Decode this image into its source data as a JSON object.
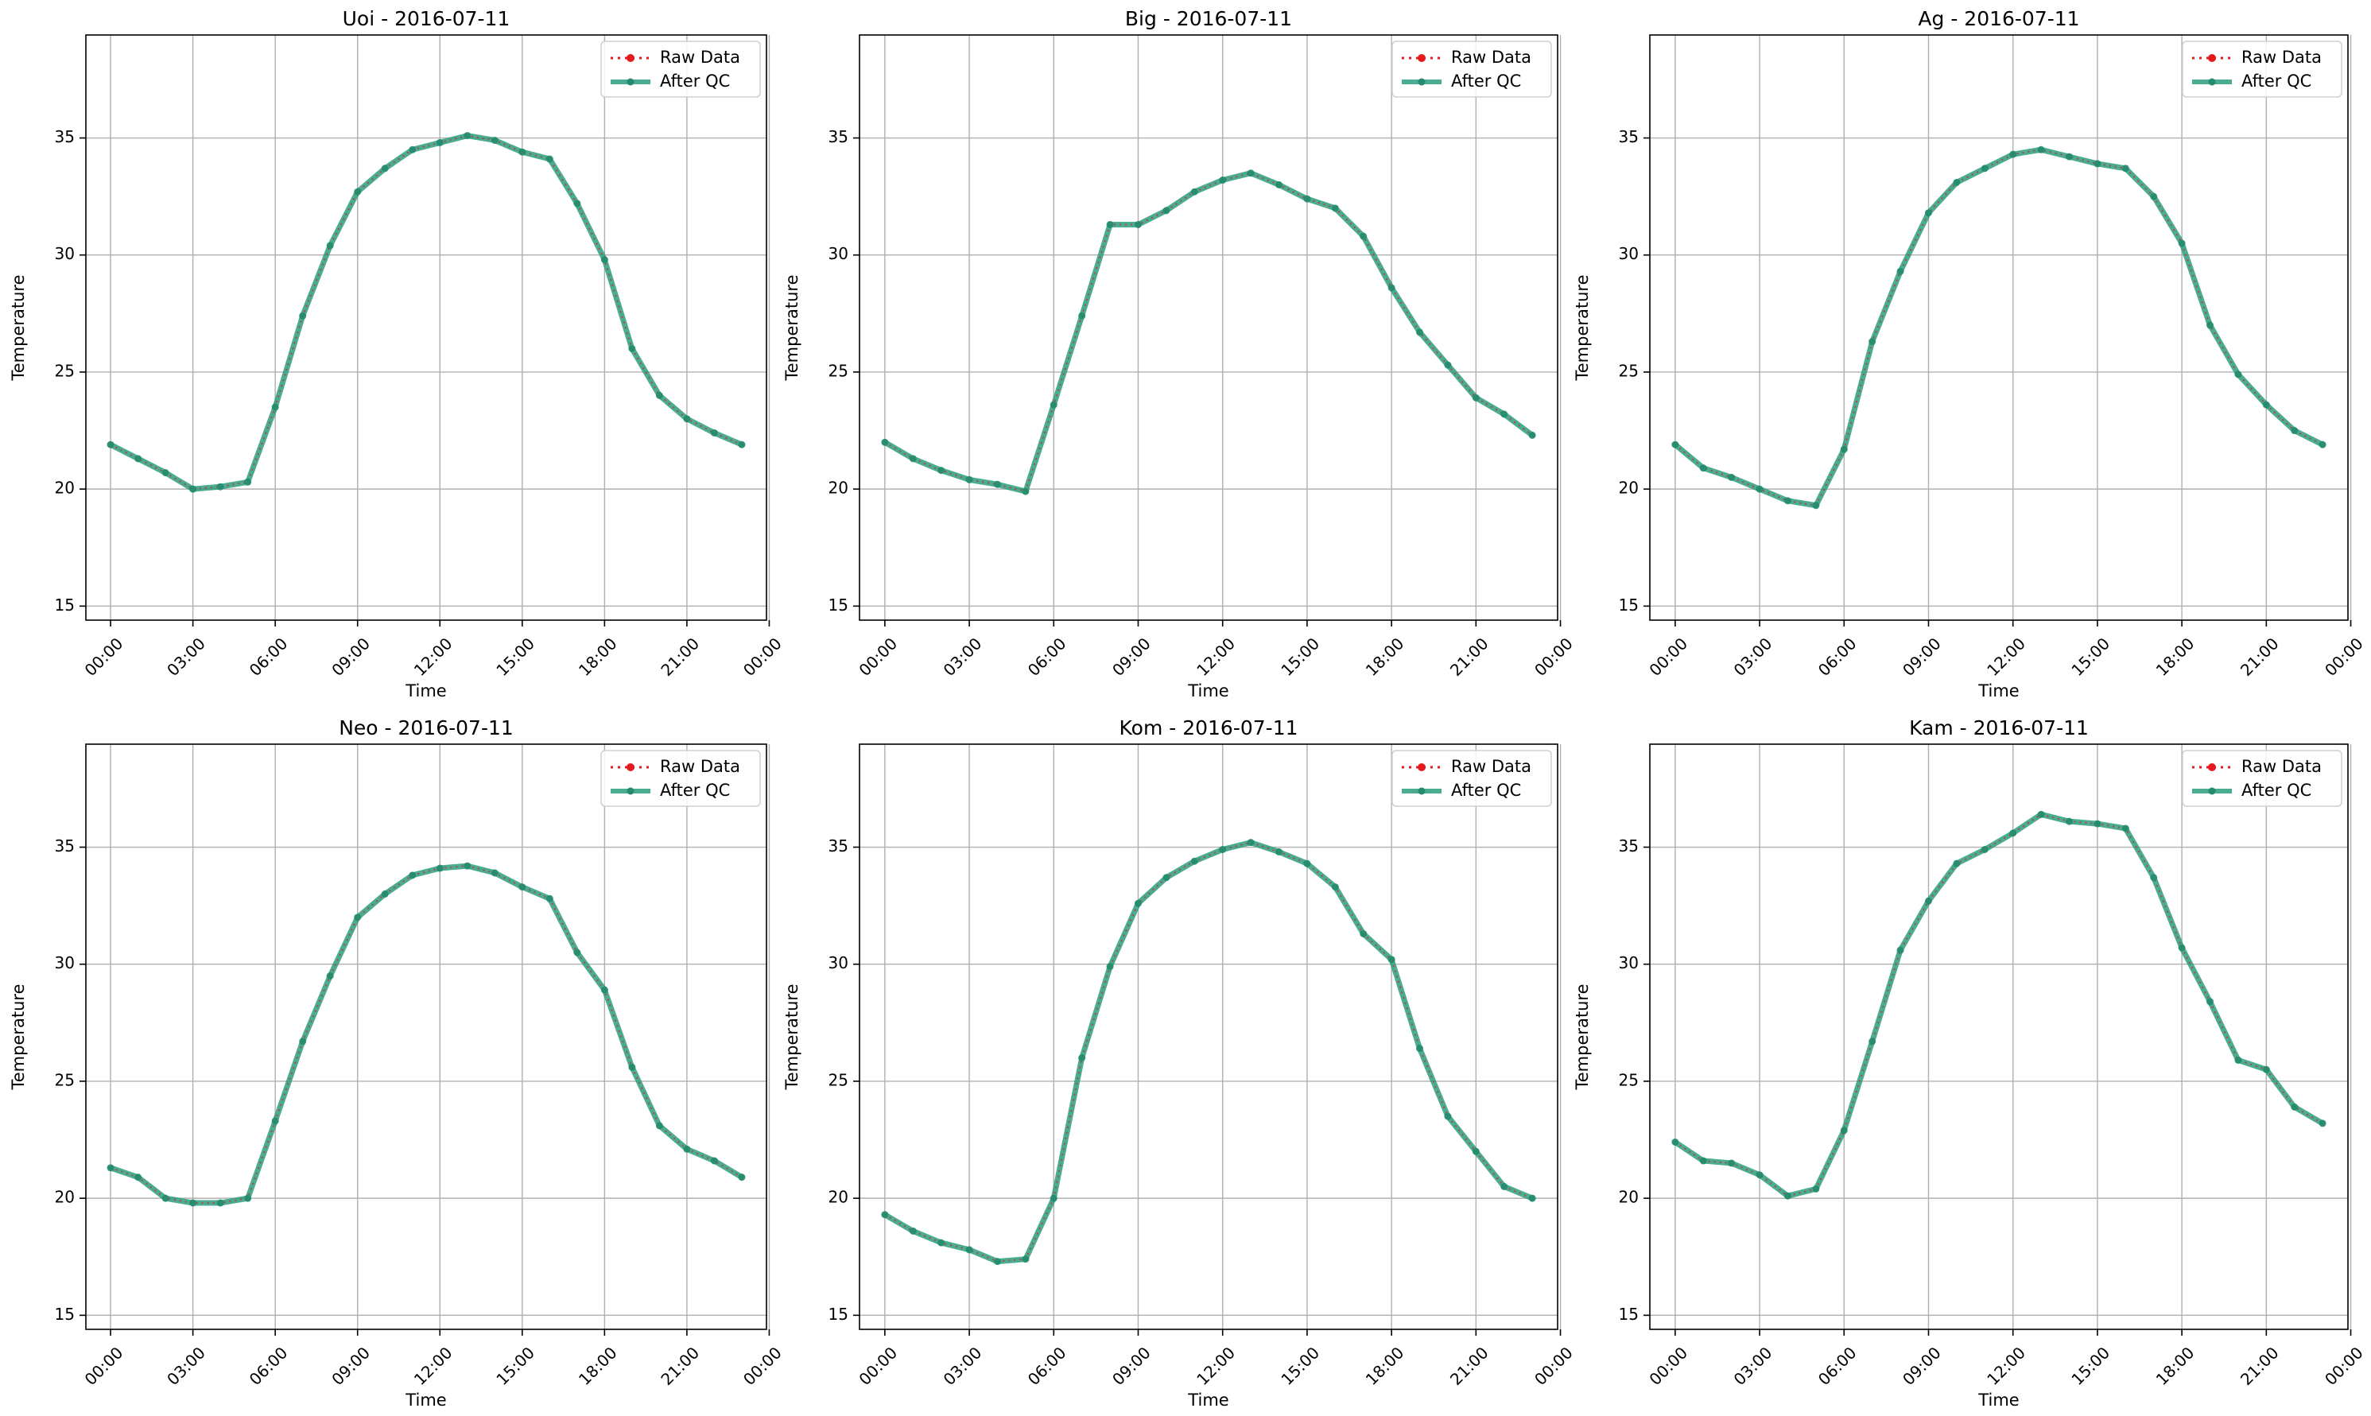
{
  "colors": {
    "raw": "#e41a1c",
    "qc": "#2a9d7e",
    "qc_marker": "#238b6e",
    "grid": "#b0b0b0"
  },
  "legend": {
    "raw_label": "Raw Data",
    "qc_label": "After QC",
    "placement": "upper right"
  },
  "chart_data": [
    {
      "type": "line",
      "title": "Uoi - 2016-07-11",
      "xlabel": "Time",
      "ylabel": "Temperature",
      "xlim": [
        -0.9,
        23.9
      ],
      "ylim": [
        14.4,
        39.4
      ],
      "grid": true,
      "x_ticks": [
        0,
        3,
        6,
        9,
        12,
        15,
        18,
        21,
        24
      ],
      "x_tick_labels": [
        "00:00",
        "03:00",
        "06:00",
        "09:00",
        "12:00",
        "15:00",
        "18:00",
        "21:00",
        "00:00"
      ],
      "y_ticks": [
        15,
        20,
        25,
        30,
        35
      ],
      "x": [
        0,
        1,
        2,
        3,
        4,
        5,
        6,
        7,
        8,
        9,
        10,
        11,
        12,
        13,
        14,
        15,
        16,
        17,
        18,
        19,
        20,
        21,
        22,
        23
      ],
      "series": [
        {
          "name": "Raw Data",
          "values": [
            21.9,
            21.3,
            20.7,
            20.0,
            20.1,
            20.3,
            23.5,
            27.4,
            30.4,
            32.7,
            33.7,
            34.5,
            34.8,
            35.1,
            34.9,
            34.4,
            34.1,
            32.2,
            29.8,
            26.0,
            24.0,
            23.0,
            22.4,
            21.9
          ]
        },
        {
          "name": "After QC",
          "values": [
            21.9,
            21.3,
            20.7,
            20.0,
            20.1,
            20.3,
            23.5,
            27.4,
            30.4,
            32.7,
            33.7,
            34.5,
            34.8,
            35.1,
            34.9,
            34.4,
            34.1,
            32.2,
            29.8,
            26.0,
            24.0,
            23.0,
            22.4,
            21.9
          ]
        }
      ]
    },
    {
      "type": "line",
      "title": "Big - 2016-07-11",
      "xlabel": "Time",
      "ylabel": "Temperature",
      "xlim": [
        -0.9,
        23.9
      ],
      "ylim": [
        14.4,
        39.4
      ],
      "grid": true,
      "x_ticks": [
        0,
        3,
        6,
        9,
        12,
        15,
        18,
        21,
        24
      ],
      "x_tick_labels": [
        "00:00",
        "03:00",
        "06:00",
        "09:00",
        "12:00",
        "15:00",
        "18:00",
        "21:00",
        "00:00"
      ],
      "y_ticks": [
        15,
        20,
        25,
        30,
        35
      ],
      "x": [
        0,
        1,
        2,
        3,
        4,
        5,
        6,
        7,
        8,
        9,
        10,
        11,
        12,
        13,
        14,
        15,
        16,
        17,
        18,
        19,
        20,
        21,
        22,
        23
      ],
      "series": [
        {
          "name": "Raw Data",
          "values": [
            22.0,
            21.3,
            20.8,
            20.4,
            20.2,
            19.9,
            23.6,
            27.4,
            31.3,
            31.3,
            31.9,
            32.7,
            33.2,
            33.5,
            33.0,
            32.4,
            32.0,
            30.8,
            28.6,
            26.7,
            25.3,
            23.9,
            23.2,
            22.3
          ]
        },
        {
          "name": "After QC",
          "values": [
            22.0,
            21.3,
            20.8,
            20.4,
            20.2,
            19.9,
            23.6,
            27.4,
            31.3,
            31.3,
            31.9,
            32.7,
            33.2,
            33.5,
            33.0,
            32.4,
            32.0,
            30.8,
            28.6,
            26.7,
            25.3,
            23.9,
            23.2,
            22.3
          ]
        }
      ]
    },
    {
      "type": "line",
      "title": "Ag - 2016-07-11",
      "xlabel": "Time",
      "ylabel": "Temperature",
      "xlim": [
        -0.9,
        23.9
      ],
      "ylim": [
        14.4,
        39.4
      ],
      "grid": true,
      "x_ticks": [
        0,
        3,
        6,
        9,
        12,
        15,
        18,
        21,
        24
      ],
      "x_tick_labels": [
        "00:00",
        "03:00",
        "06:00",
        "09:00",
        "12:00",
        "15:00",
        "18:00",
        "21:00",
        "00:00"
      ],
      "y_ticks": [
        15,
        20,
        25,
        30,
        35
      ],
      "x": [
        0,
        1,
        2,
        3,
        4,
        5,
        6,
        7,
        8,
        9,
        10,
        11,
        12,
        13,
        14,
        15,
        16,
        17,
        18,
        19,
        20,
        21,
        22,
        23
      ],
      "series": [
        {
          "name": "Raw Data",
          "values": [
            21.9,
            20.9,
            20.5,
            20.0,
            19.5,
            19.3,
            21.7,
            26.3,
            29.3,
            31.8,
            33.1,
            33.7,
            34.3,
            34.5,
            34.2,
            33.9,
            33.7,
            32.5,
            30.5,
            27.0,
            24.9,
            23.6,
            22.5,
            21.9
          ]
        },
        {
          "name": "After QC",
          "values": [
            21.9,
            20.9,
            20.5,
            20.0,
            19.5,
            19.3,
            21.7,
            26.3,
            29.3,
            31.8,
            33.1,
            33.7,
            34.3,
            34.5,
            34.2,
            33.9,
            33.7,
            32.5,
            30.5,
            27.0,
            24.9,
            23.6,
            22.5,
            21.9
          ]
        }
      ]
    },
    {
      "type": "line",
      "title": "Neo - 2016-07-11",
      "xlabel": "Time",
      "ylabel": "Temperature",
      "xlim": [
        -0.9,
        23.9
      ],
      "ylim": [
        14.4,
        39.4
      ],
      "grid": true,
      "x_ticks": [
        0,
        3,
        6,
        9,
        12,
        15,
        18,
        21,
        24
      ],
      "x_tick_labels": [
        "00:00",
        "03:00",
        "06:00",
        "09:00",
        "12:00",
        "15:00",
        "18:00",
        "21:00",
        "00:00"
      ],
      "y_ticks": [
        15,
        20,
        25,
        30,
        35
      ],
      "x": [
        0,
        1,
        2,
        3,
        4,
        5,
        6,
        7,
        8,
        9,
        10,
        11,
        12,
        13,
        14,
        15,
        16,
        17,
        18,
        19,
        20,
        21,
        22,
        23
      ],
      "series": [
        {
          "name": "Raw Data",
          "values": [
            21.3,
            20.9,
            20.0,
            19.8,
            19.8,
            20.0,
            23.3,
            26.7,
            29.5,
            32.0,
            33.0,
            33.8,
            34.1,
            34.2,
            33.9,
            33.3,
            32.8,
            30.5,
            28.9,
            25.6,
            23.1,
            22.1,
            21.6,
            20.9
          ]
        },
        {
          "name": "After QC",
          "values": [
            21.3,
            20.9,
            20.0,
            19.8,
            19.8,
            20.0,
            23.3,
            26.7,
            29.5,
            32.0,
            33.0,
            33.8,
            34.1,
            34.2,
            33.9,
            33.3,
            32.8,
            30.5,
            28.9,
            25.6,
            23.1,
            22.1,
            21.6,
            20.9
          ]
        }
      ]
    },
    {
      "type": "line",
      "title": "Kom - 2016-07-11",
      "xlabel": "Time",
      "ylabel": "Temperature",
      "xlim": [
        -0.9,
        23.9
      ],
      "ylim": [
        14.4,
        39.4
      ],
      "grid": true,
      "x_ticks": [
        0,
        3,
        6,
        9,
        12,
        15,
        18,
        21,
        24
      ],
      "x_tick_labels": [
        "00:00",
        "03:00",
        "06:00",
        "09:00",
        "12:00",
        "15:00",
        "18:00",
        "21:00",
        "00:00"
      ],
      "y_ticks": [
        15,
        20,
        25,
        30,
        35
      ],
      "x": [
        0,
        1,
        2,
        3,
        4,
        5,
        6,
        7,
        8,
        9,
        10,
        11,
        12,
        13,
        14,
        15,
        16,
        17,
        18,
        19,
        20,
        21,
        22,
        23
      ],
      "series": [
        {
          "name": "Raw Data",
          "values": [
            19.3,
            18.6,
            18.1,
            17.8,
            17.3,
            17.4,
            20.0,
            26.0,
            29.9,
            32.6,
            33.7,
            34.4,
            34.9,
            35.2,
            34.8,
            34.3,
            33.3,
            31.3,
            30.2,
            26.4,
            23.5,
            22.0,
            20.5,
            20.0
          ]
        },
        {
          "name": "After QC",
          "values": [
            19.3,
            18.6,
            18.1,
            17.8,
            17.3,
            17.4,
            20.0,
            26.0,
            29.9,
            32.6,
            33.7,
            34.4,
            34.9,
            35.2,
            34.8,
            34.3,
            33.3,
            31.3,
            30.2,
            26.4,
            23.5,
            22.0,
            20.5,
            20.0
          ]
        }
      ]
    },
    {
      "type": "line",
      "title": "Kam - 2016-07-11",
      "xlabel": "Time",
      "ylabel": "Temperature",
      "xlim": [
        -0.9,
        23.9
      ],
      "ylim": [
        14.4,
        39.4
      ],
      "grid": true,
      "x_ticks": [
        0,
        3,
        6,
        9,
        12,
        15,
        18,
        21,
        24
      ],
      "x_tick_labels": [
        "00:00",
        "03:00",
        "06:00",
        "09:00",
        "12:00",
        "15:00",
        "18:00",
        "21:00",
        "00:00"
      ],
      "y_ticks": [
        15,
        20,
        25,
        30,
        35
      ],
      "x": [
        0,
        1,
        2,
        3,
        4,
        5,
        6,
        7,
        8,
        9,
        10,
        11,
        12,
        13,
        14,
        15,
        16,
        17,
        18,
        19,
        20,
        21,
        22,
        23
      ],
      "series": [
        {
          "name": "Raw Data",
          "values": [
            22.4,
            21.6,
            21.5,
            21.0,
            20.1,
            20.4,
            22.9,
            26.7,
            30.6,
            32.7,
            34.3,
            34.9,
            35.6,
            36.4,
            36.1,
            36.0,
            35.8,
            33.7,
            30.7,
            28.4,
            25.9,
            25.5,
            23.9,
            23.2
          ]
        },
        {
          "name": "After QC",
          "values": [
            22.4,
            21.6,
            21.5,
            21.0,
            20.1,
            20.4,
            22.9,
            26.7,
            30.6,
            32.7,
            34.3,
            34.9,
            35.6,
            36.4,
            36.1,
            36.0,
            35.8,
            33.7,
            30.7,
            28.4,
            25.9,
            25.5,
            23.9,
            23.2
          ]
        }
      ]
    }
  ]
}
